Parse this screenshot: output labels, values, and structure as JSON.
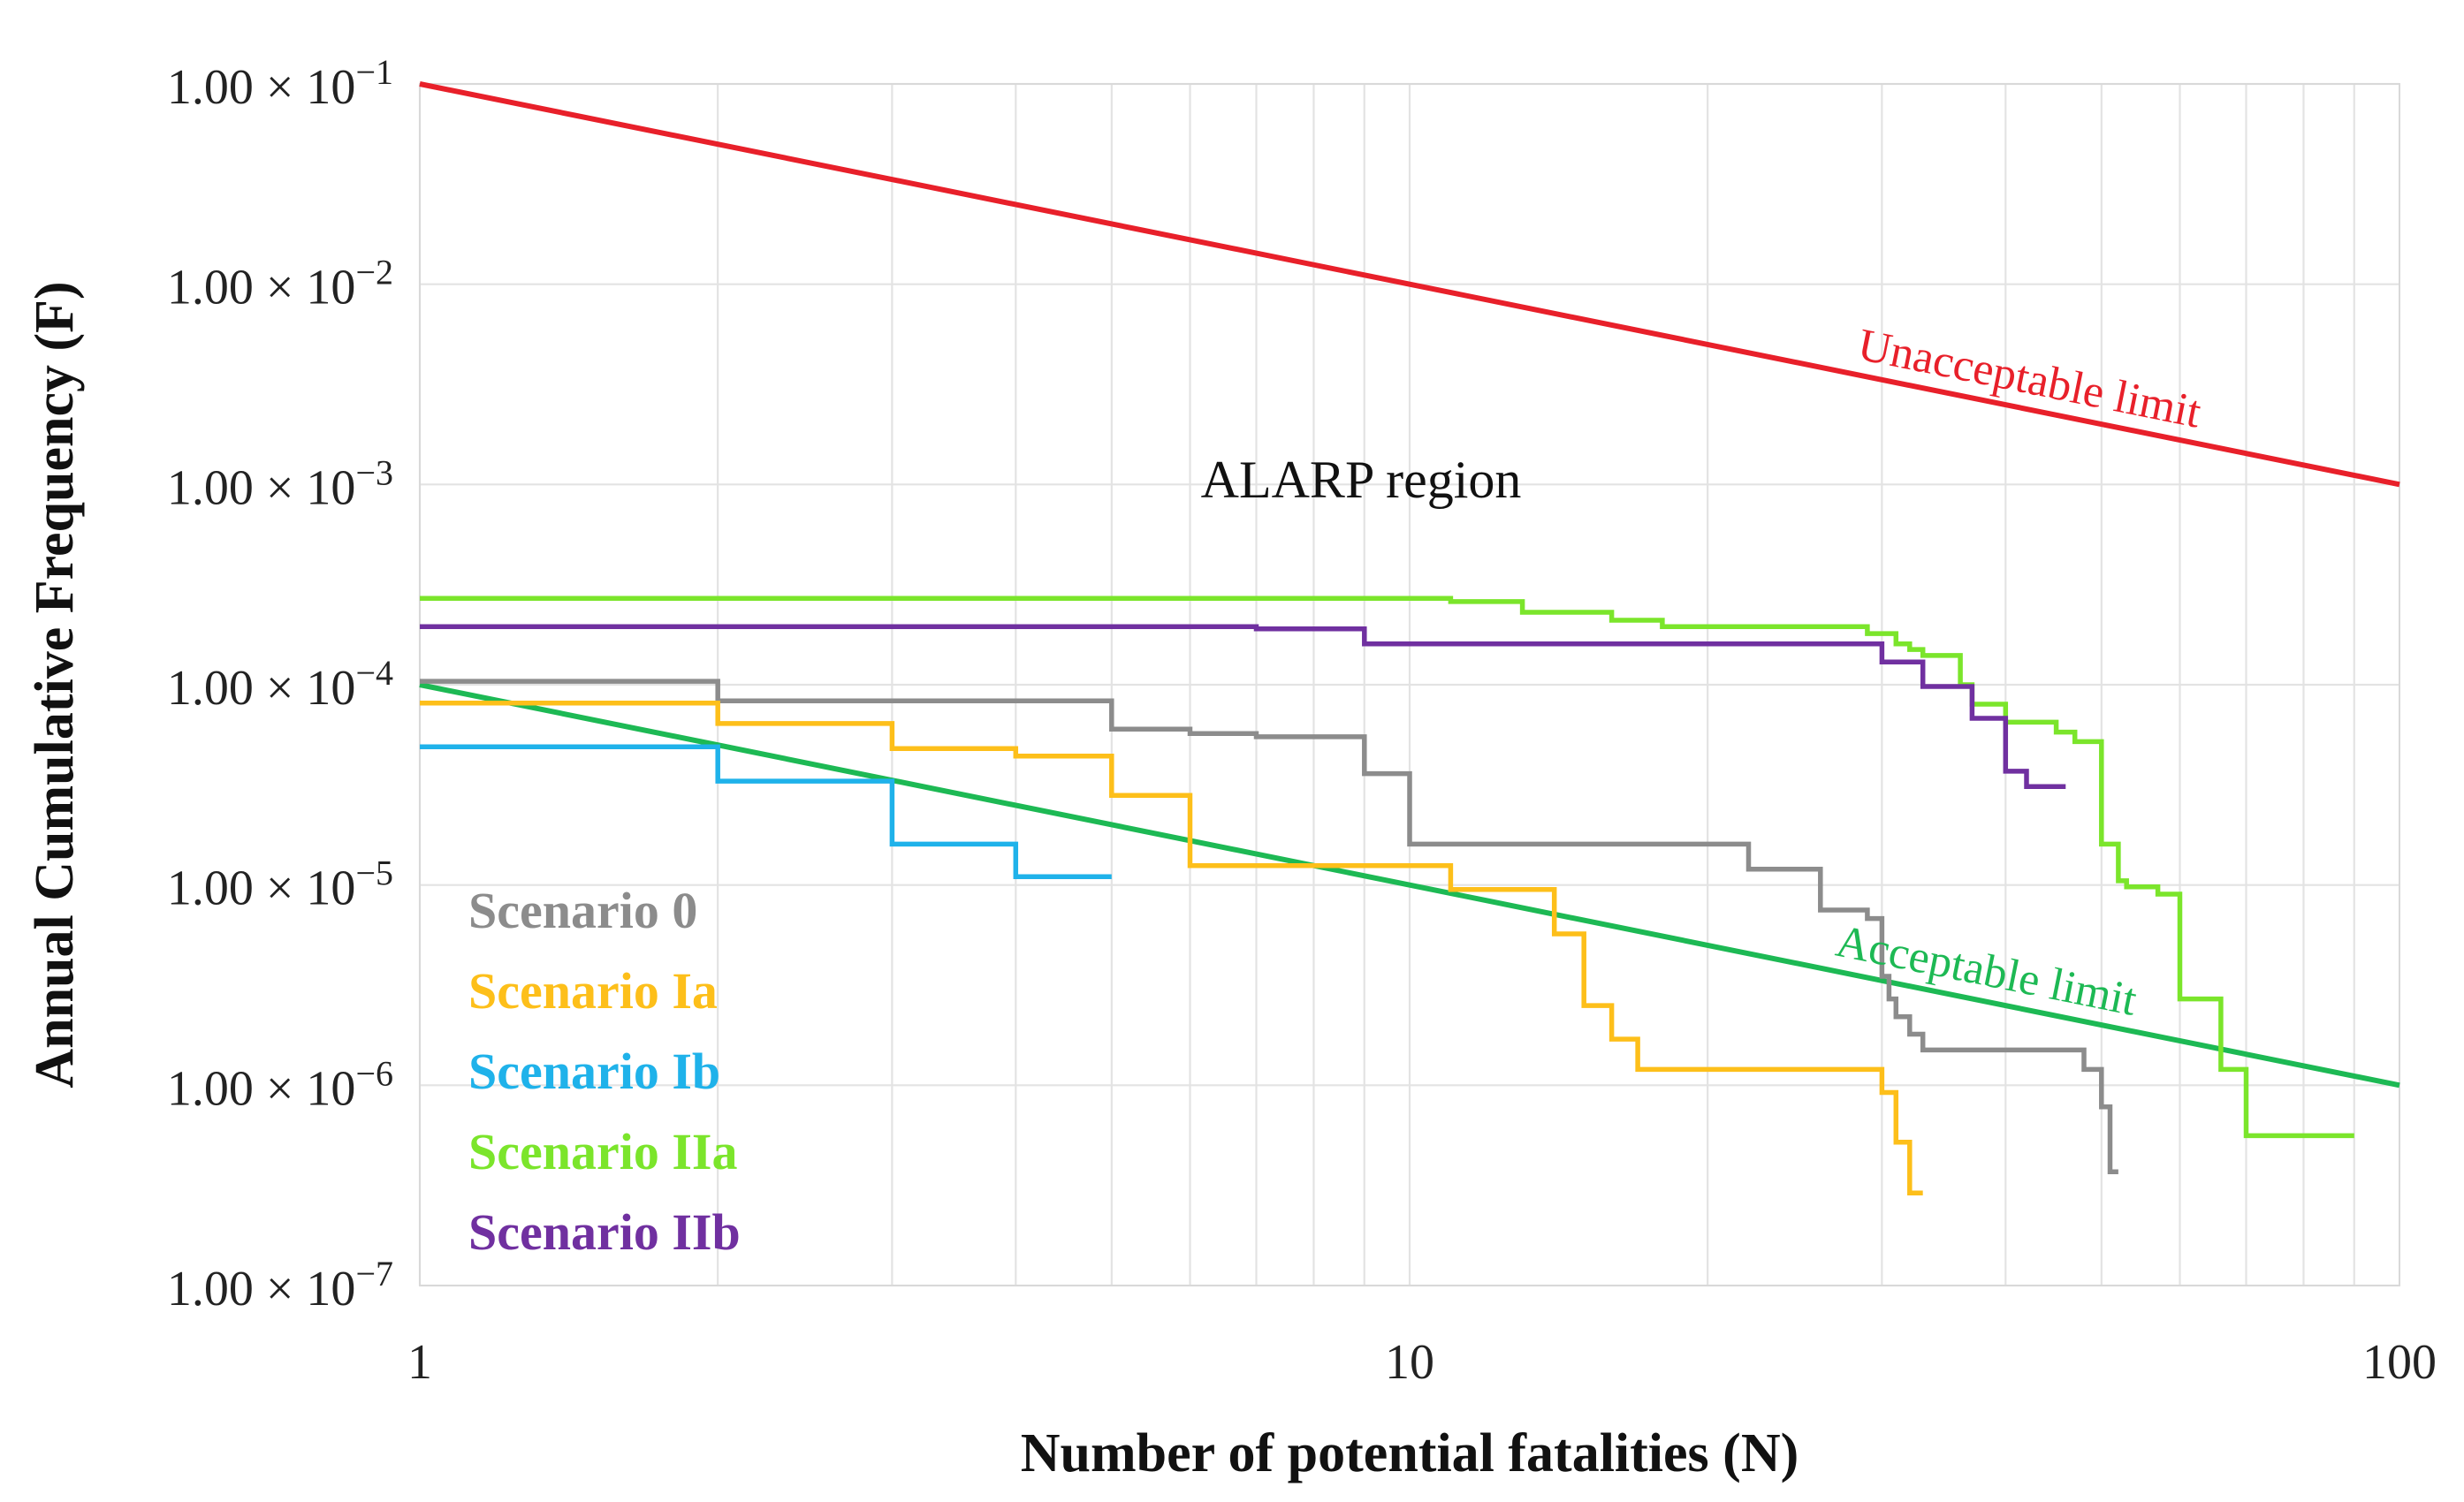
{
  "chart_data": {
    "type": "line",
    "title": "",
    "xlabel": "Number of potential fatalities (N)",
    "ylabel": "Annual Cumulative Frequency (F)",
    "xscale": "log",
    "yscale": "log",
    "xlim": [
      1,
      100
    ],
    "ylim": [
      1e-07,
      0.1
    ],
    "grid": true,
    "x_ticks": [
      {
        "value": 1,
        "label": "1"
      },
      {
        "value": 10,
        "label": "10"
      },
      {
        "value": 100,
        "label": "100"
      }
    ],
    "y_ticks": [
      {
        "value": 0.1,
        "mantissa": "1.00 × 10",
        "exponent": "−1"
      },
      {
        "value": 0.01,
        "mantissa": "1.00 × 10",
        "exponent": "−2"
      },
      {
        "value": 0.001,
        "mantissa": "1.00 × 10",
        "exponent": "−3"
      },
      {
        "value": 0.0001,
        "mantissa": "1.00 × 10",
        "exponent": "−4"
      },
      {
        "value": 1e-05,
        "mantissa": "1.00 × 10",
        "exponent": "−5"
      },
      {
        "value": 1e-06,
        "mantissa": "1.00 × 10",
        "exponent": "−6"
      },
      {
        "value": 1e-07,
        "mantissa": "1.00 × 10",
        "exponent": "−7"
      }
    ],
    "limits": [
      {
        "name": "Unacceptable limit",
        "color": "#e8202a",
        "x": [
          1,
          100
        ],
        "y": [
          0.1,
          0.001
        ]
      },
      {
        "name": "Acceptable limit",
        "color": "#1db954",
        "x": [
          1,
          100
        ],
        "y": [
          0.0001,
          1e-06
        ]
      }
    ],
    "region_label": "ALARP region",
    "series": [
      {
        "name": "Scenario 0",
        "color": "#8c8c8c",
        "x": [
          1,
          2,
          2,
          5,
          5,
          6,
          6,
          7,
          7,
          9,
          9,
          10,
          10,
          22,
          22,
          26,
          26,
          29,
          29,
          30,
          30,
          30.5,
          30.5,
          31,
          31,
          32,
          32,
          33,
          33,
          48,
          48,
          50,
          50,
          51,
          51,
          52
        ],
        "y": [
          0.000104,
          0.000104,
          8.3e-05,
          8.3e-05,
          6e-05,
          6e-05,
          5.7e-05,
          5.7e-05,
          5.5e-05,
          5.5e-05,
          3.6e-05,
          3.6e-05,
          1.6e-05,
          1.6e-05,
          1.2e-05,
          1.2e-05,
          7.5e-06,
          7.5e-06,
          6.8e-06,
          6.8e-06,
          3.5e-06,
          3.5e-06,
          2.7e-06,
          2.7e-06,
          2.2e-06,
          2.2e-06,
          1.8e-06,
          1.8e-06,
          1.5e-06,
          1.5e-06,
          1.2e-06,
          1.2e-06,
          7.8e-07,
          7.8e-07,
          3.7e-07,
          3.7e-07
        ]
      },
      {
        "name": "Scenario Ia",
        "color": "#fdbf1a",
        "x": [
          1,
          2,
          2,
          3,
          3,
          4,
          4,
          5,
          5,
          6,
          6,
          11,
          11,
          14,
          14,
          15,
          15,
          16,
          16,
          17,
          17,
          30,
          30,
          31,
          31,
          32,
          32,
          33
        ],
        "y": [
          8.1e-05,
          8.1e-05,
          6.4e-05,
          6.4e-05,
          4.8e-05,
          4.8e-05,
          4.4e-05,
          4.4e-05,
          2.8e-05,
          2.8e-05,
          1.25e-05,
          1.25e-05,
          9.5e-06,
          9.5e-06,
          5.7e-06,
          5.7e-06,
          2.5e-06,
          2.5e-06,
          1.7e-06,
          1.7e-06,
          1.2e-06,
          1.2e-06,
          9.2e-07,
          9.2e-07,
          5.2e-07,
          5.2e-07,
          2.9e-07,
          2.9e-07
        ]
      },
      {
        "name": "Scenario Ib",
        "color": "#1fb2ea",
        "x": [
          1,
          2,
          2,
          3,
          3,
          4,
          4,
          5
        ],
        "y": [
          4.9e-05,
          4.9e-05,
          3.3e-05,
          3.3e-05,
          1.6e-05,
          1.6e-05,
          1.1e-05,
          1.1e-05
        ]
      },
      {
        "name": "Scenario IIa",
        "color": "#7be52b",
        "x": [
          1,
          11,
          11,
          13,
          13,
          16,
          16,
          18,
          18,
          29,
          29,
          31,
          31,
          32,
          32,
          33,
          33,
          36,
          36,
          37,
          37,
          40,
          40,
          45,
          45,
          47,
          47,
          50,
          50,
          52,
          52,
          53,
          53,
          57,
          57,
          60,
          60,
          66,
          66,
          70,
          70,
          90
        ],
        "y": [
          0.00027,
          0.00027,
          0.00026,
          0.00026,
          0.00023,
          0.00023,
          0.00021,
          0.00021,
          0.000195,
          0.000195,
          0.00018,
          0.00018,
          0.00016,
          0.00016,
          0.00015,
          0.00015,
          0.00014,
          0.00014,
          0.0001,
          0.0001,
          8e-05,
          8e-05,
          6.5e-05,
          6.5e-05,
          5.8e-05,
          5.8e-05,
          5.2e-05,
          5.2e-05,
          1.6e-05,
          1.6e-05,
          1.05e-05,
          1.05e-05,
          9.8e-06,
          9.8e-06,
          9e-06,
          9e-06,
          2.7e-06,
          2.7e-06,
          1.2e-06,
          1.2e-06,
          5.6e-07,
          5.6e-07
        ]
      },
      {
        "name": "Scenario IIb",
        "color": "#7030a0",
        "x": [
          1,
          7,
          7,
          9,
          9,
          30,
          30,
          33,
          33,
          37,
          37,
          40,
          40,
          42,
          42,
          46
        ],
        "y": [
          0.000195,
          0.000195,
          0.00019,
          0.00019,
          0.00016,
          0.00016,
          0.00013,
          0.00013,
          9.8e-05,
          9.8e-05,
          6.8e-05,
          6.8e-05,
          3.7e-05,
          3.7e-05,
          3.1e-05,
          3.1e-05
        ]
      }
    ]
  }
}
